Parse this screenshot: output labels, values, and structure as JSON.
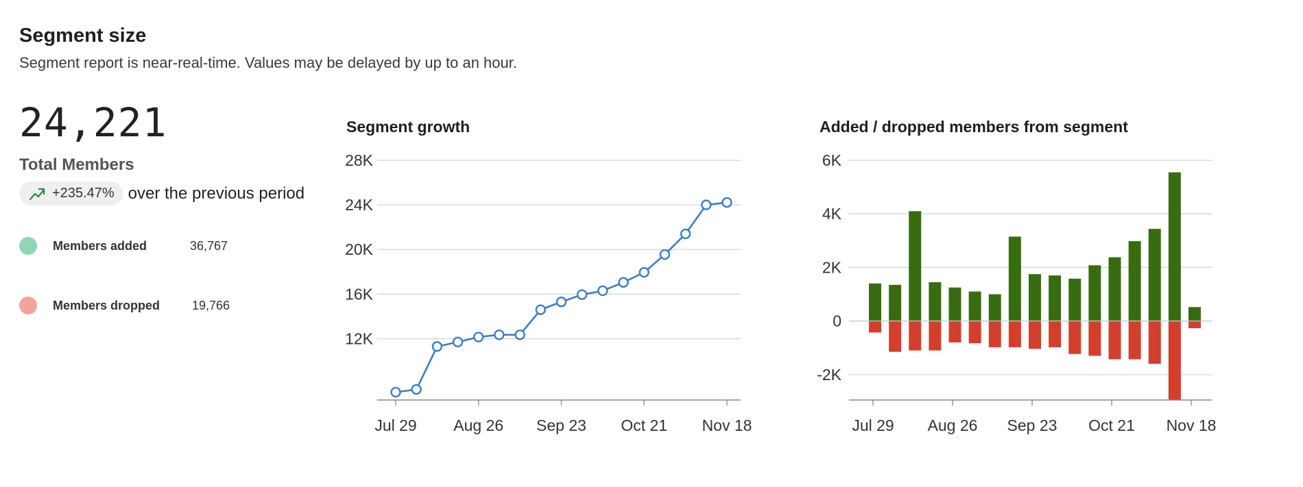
{
  "header": {
    "title": "Segment size",
    "subtitle": "Segment report is near-real-time. Values may be delayed by up to an hour."
  },
  "stats": {
    "total": "24,221",
    "total_label": "Total Members",
    "change_icon": "trending-up-icon",
    "change_value": "+235.47%",
    "change_text": "over the previous period",
    "legend": [
      {
        "name": "Members added",
        "value": "36,767",
        "color": "#8fd6b6"
      },
      {
        "name": "Members dropped",
        "value": "19,766",
        "color": "#f0a49a"
      }
    ]
  },
  "colors": {
    "line": "#3b7dc9",
    "added": "#386c12",
    "dropped": "#d2402d",
    "up_arrow": "#1e8a3e"
  },
  "chart_data": [
    {
      "type": "line",
      "title": "Segment growth",
      "xlabel": "",
      "ylabel": "",
      "x_tick_labels": [
        "Jul 29",
        "Aug 26",
        "Sep 23",
        "Oct 21",
        "Nov 18"
      ],
      "x": [
        "Jul 29",
        "Aug 5",
        "Aug 12",
        "Aug 19",
        "Aug 26",
        "Sep 2",
        "Sep 9",
        "Sep 16",
        "Sep 23",
        "Sep 30",
        "Oct 7",
        "Oct 14",
        "Oct 21",
        "Oct 28",
        "Nov 4",
        "Nov 11",
        "Nov 18"
      ],
      "values": [
        7200,
        7450,
        11300,
        11700,
        12150,
        12350,
        12350,
        14600,
        15300,
        15950,
        16300,
        17050,
        17950,
        19550,
        21400,
        24000,
        24221
      ],
      "y_ticks": [
        12000,
        16000,
        20000,
        24000,
        28000
      ],
      "y_tick_labels": [
        "12K",
        "16K",
        "20K",
        "24K",
        "28K"
      ],
      "ylim": [
        6500,
        28000
      ],
      "grid": true
    },
    {
      "type": "bar",
      "title": "Added / dropped members from segment",
      "xlabel": "",
      "ylabel": "",
      "x_tick_labels": [
        "Jul 29",
        "Aug 26",
        "Sep 23",
        "Oct 21",
        "Nov 18"
      ],
      "categories": [
        "Jul 29",
        "Aug 5",
        "Aug 12",
        "Aug 19",
        "Aug 26",
        "Sep 2",
        "Sep 9",
        "Sep 16",
        "Sep 23",
        "Sep 30",
        "Oct 7",
        "Oct 14",
        "Oct 21",
        "Oct 28",
        "Nov 4",
        "Nov 11",
        "Nov 18"
      ],
      "series": [
        {
          "values": [
            1400,
            1350,
            4100,
            1450,
            1250,
            1100,
            1000,
            3150,
            1750,
            1700,
            1580,
            2080,
            2380,
            2980,
            3440,
            5550,
            520
          ]
        },
        {
          "values": [
            -430,
            -1150,
            -1100,
            -1100,
            -800,
            -830,
            -980,
            -980,
            -1040,
            -980,
            -1230,
            -1300,
            -1430,
            -1430,
            -1600,
            -2950,
            -270
          ]
        }
      ],
      "y_ticks": [
        -2000,
        0,
        2000,
        4000,
        6000
      ],
      "y_tick_labels": [
        "-2K",
        "0",
        "2K",
        "4K",
        "6K"
      ],
      "ylim": [
        -2950,
        6000
      ],
      "grid": true
    }
  ]
}
